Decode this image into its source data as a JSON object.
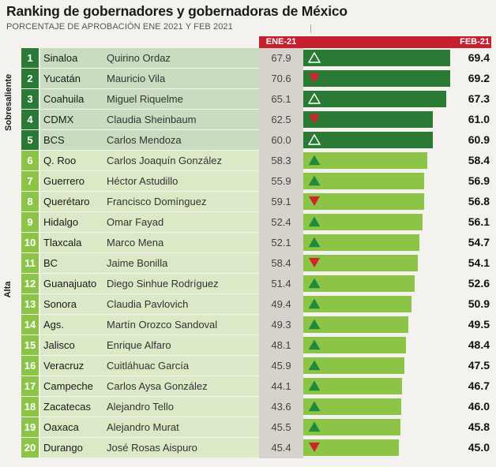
{
  "title": "Ranking de gobernadores y gobernadoras de México",
  "subtitle": "PORCENTAJE DE APROBACIÓN ENE 2021 Y FEB 2021",
  "colors": {
    "sobresaliente_dark": "#2a7a35",
    "sobresaliente_label_bg": "#c9dcc0",
    "alta_light": "#8cc447",
    "alta_label_bg": "#dbe9c6",
    "header_red": "#c4202e",
    "arrow_up": "#1f8a3b",
    "arrow_down": "#d0232a"
  },
  "chart_data": {
    "type": "bar",
    "title": "Ranking de gobernadores y gobernadoras de México",
    "subtitle": "PORCENTAJE DE APROBACIÓN ENE 2021 Y FEB 2021",
    "columns": [
      "ENE-21",
      "FEB-21"
    ],
    "groups": [
      {
        "name": "Sobresaliente",
        "ranks": [
          1,
          5
        ]
      },
      {
        "name": "Alta",
        "ranks": [
          6,
          20
        ]
      }
    ],
    "xlim": [
      0,
      70
    ],
    "rows": [
      {
        "rank": "1",
        "state": "Sinaloa",
        "governor": "Quirino Ordaz",
        "ene": "67.9",
        "feb": "69.4",
        "trend": "up",
        "group": "Sobresaliente"
      },
      {
        "rank": "2",
        "state": "Yucatán",
        "governor": "Mauricio Vila",
        "ene": "70.6",
        "feb": "69.2",
        "trend": "down",
        "group": "Sobresaliente"
      },
      {
        "rank": "3",
        "state": "Coahuila",
        "governor": "Miguel Riquelme",
        "ene": "65.1",
        "feb": "67.3",
        "trend": "up",
        "group": "Sobresaliente"
      },
      {
        "rank": "4",
        "state": "CDMX",
        "governor": "Claudia Sheinbaum",
        "ene": "62.5",
        "feb": "61.0",
        "trend": "down",
        "group": "Sobresaliente"
      },
      {
        "rank": "5",
        "state": "BCS",
        "governor": "Carlos Mendoza",
        "ene": "60.0",
        "feb": "60.9",
        "trend": "up",
        "group": "Sobresaliente"
      },
      {
        "rank": "6",
        "state": "Q. Roo",
        "governor": "Carlos Joaquín González",
        "ene": "58.3",
        "feb": "58.4",
        "trend": "up",
        "group": "Alta"
      },
      {
        "rank": "7",
        "state": "Guerrero",
        "governor": "Héctor Astudillo",
        "ene": "55.9",
        "feb": "56.9",
        "trend": "up",
        "group": "Alta"
      },
      {
        "rank": "8",
        "state": "Querétaro",
        "governor": "Francisco Domínguez",
        "ene": "59.1",
        "feb": "56.8",
        "trend": "down",
        "group": "Alta"
      },
      {
        "rank": "9",
        "state": "Hidalgo",
        "governor": "Omar Fayad",
        "ene": "52.4",
        "feb": "56.1",
        "trend": "up",
        "group": "Alta"
      },
      {
        "rank": "10",
        "state": "Tlaxcala",
        "governor": "Marco Mena",
        "ene": "52.1",
        "feb": "54.7",
        "trend": "up",
        "group": "Alta"
      },
      {
        "rank": "11",
        "state": "BC",
        "governor": "Jaime Bonilla",
        "ene": "58.4",
        "feb": "54.1",
        "trend": "down",
        "group": "Alta"
      },
      {
        "rank": "12",
        "state": "Guanajuato",
        "governor": "Diego Sinhue Rodríguez",
        "ene": "51.4",
        "feb": "52.6",
        "trend": "up",
        "group": "Alta"
      },
      {
        "rank": "13",
        "state": "Sonora",
        "governor": "Claudia Pavlovich",
        "ene": "49.4",
        "feb": "50.9",
        "trend": "up",
        "group": "Alta"
      },
      {
        "rank": "14",
        "state": "Ags.",
        "governor": "Martín Orozco Sandoval",
        "ene": "49.3",
        "feb": "49.5",
        "trend": "up",
        "group": "Alta"
      },
      {
        "rank": "15",
        "state": "Jalisco",
        "governor": "Enrique Alfaro",
        "ene": "48.1",
        "feb": "48.4",
        "trend": "up",
        "group": "Alta"
      },
      {
        "rank": "16",
        "state": "Veracruz",
        "governor": "Cuitláhuac García",
        "ene": "45.9",
        "feb": "47.5",
        "trend": "up",
        "group": "Alta"
      },
      {
        "rank": "17",
        "state": "Campeche",
        "governor": "Carlos Aysa González",
        "ene": "44.1",
        "feb": "46.7",
        "trend": "up",
        "group": "Alta"
      },
      {
        "rank": "18",
        "state": "Zacatecas",
        "governor": "Alejandro Tello",
        "ene": "43.6",
        "feb": "46.0",
        "trend": "up",
        "group": "Alta"
      },
      {
        "rank": "19",
        "state": "Oaxaca",
        "governor": "Alejandro Murat",
        "ene": "45.5",
        "feb": "45.8",
        "trend": "up",
        "group": "Alta"
      },
      {
        "rank": "20",
        "state": "Durango",
        "governor": "José Rosas Aispuro",
        "ene": "45.4",
        "feb": "45.0",
        "trend": "down",
        "group": "Alta"
      }
    ]
  }
}
